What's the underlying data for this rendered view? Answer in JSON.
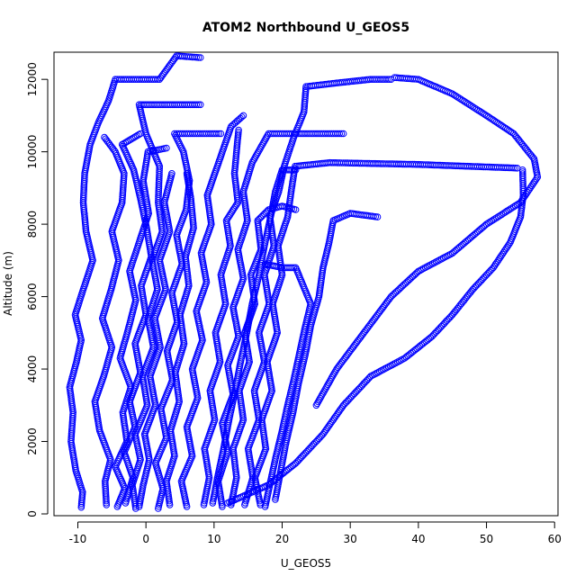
{
  "chart_data": {
    "type": "scatter",
    "title": "ATOM2 Northbound U_GEOS5",
    "xlabel": "U_GEOS5",
    "ylabel": "Altitude (m)",
    "xlim": [
      -13.5,
      60.5
    ],
    "ylim": [
      -50,
      12750
    ],
    "xticks": [
      -10,
      0,
      10,
      20,
      30,
      40,
      50,
      60
    ],
    "yticks": [
      0,
      2000,
      4000,
      6000,
      8000,
      10000,
      12000
    ],
    "grid": false,
    "marker": "open-circle",
    "point_color": "#0000ff",
    "series": [
      {
        "values": [
          [
            -9.5,
            180
          ],
          [
            -9.3,
            600
          ],
          [
            -10.3,
            1200
          ],
          [
            -11.0,
            2000
          ],
          [
            -10.7,
            2800
          ],
          [
            -11.2,
            3500
          ],
          [
            -10.2,
            4200
          ],
          [
            -9.5,
            4800
          ],
          [
            -10.4,
            5500
          ],
          [
            -9.2,
            6200
          ],
          [
            -7.8,
            7000
          ],
          [
            -8.8,
            7800
          ],
          [
            -9.2,
            8600
          ],
          [
            -9.0,
            9400
          ],
          [
            -8.2,
            10200
          ],
          [
            -7.0,
            10800
          ],
          [
            -5.5,
            11400
          ],
          [
            -4.5,
            12000
          ],
          [
            2.0,
            12000
          ],
          [
            4.5,
            12650
          ],
          [
            8.0,
            12600
          ]
        ]
      },
      {
        "values": [
          [
            -5.8,
            250
          ],
          [
            -6.0,
            900
          ],
          [
            -5.2,
            1500
          ],
          [
            -6.8,
            2300
          ],
          [
            -7.5,
            3100
          ],
          [
            -6.2,
            3800
          ],
          [
            -5.0,
            4600
          ],
          [
            -6.4,
            5400
          ],
          [
            -5.1,
            6200
          ],
          [
            -4.0,
            7000
          ],
          [
            -5.0,
            7800
          ],
          [
            -3.5,
            8600
          ],
          [
            -3.2,
            9400
          ],
          [
            -4.5,
            10000
          ],
          [
            -6.1,
            10400
          ]
        ]
      },
      {
        "values": [
          [
            -4.2,
            200
          ],
          [
            -3.1,
            700
          ],
          [
            -4.5,
            1300
          ],
          [
            -2.8,
            2000
          ],
          [
            -3.4,
            2800
          ],
          [
            -2.2,
            3500
          ],
          [
            -3.8,
            4300
          ],
          [
            -2.6,
            5100
          ],
          [
            -1.5,
            5900
          ],
          [
            -2.4,
            6700
          ],
          [
            -1.0,
            7500
          ],
          [
            0.4,
            8300
          ],
          [
            -0.4,
            9200
          ],
          [
            0.3,
            10000
          ],
          [
            3.0,
            10100
          ]
        ]
      },
      {
        "values": [
          [
            -1.5,
            150
          ],
          [
            -2.0,
            800
          ],
          [
            -0.8,
            1500
          ],
          [
            -1.6,
            2200
          ],
          [
            0.2,
            3000
          ],
          [
            -0.5,
            3800
          ],
          [
            1.1,
            4600
          ],
          [
            0.3,
            5400
          ],
          [
            1.7,
            6200
          ],
          [
            0.9,
            7000
          ],
          [
            2.4,
            7800
          ],
          [
            1.8,
            8600
          ],
          [
            2.0,
            9600
          ],
          [
            0.0,
            10500
          ],
          [
            -1.0,
            11300
          ],
          [
            8.0,
            11300
          ]
        ]
      },
      {
        "values": [
          [
            1.8,
            150
          ],
          [
            2.5,
            700
          ],
          [
            1.4,
            1400
          ],
          [
            3.0,
            2100
          ],
          [
            2.2,
            2900
          ],
          [
            3.9,
            3700
          ],
          [
            3.1,
            4500
          ],
          [
            4.6,
            5300
          ],
          [
            3.8,
            6100
          ],
          [
            5.3,
            6900
          ],
          [
            4.5,
            7700
          ],
          [
            5.9,
            8400
          ],
          [
            6.4,
            9200
          ],
          [
            5.5,
            10000
          ],
          [
            4.2,
            10500
          ],
          [
            11.0,
            10500
          ]
        ]
      },
      {
        "values": [
          [
            6.0,
            200
          ],
          [
            5.2,
            900
          ],
          [
            6.8,
            1600
          ],
          [
            6.0,
            2400
          ],
          [
            7.6,
            3200
          ],
          [
            6.8,
            4000
          ],
          [
            8.3,
            4800
          ],
          [
            7.4,
            5600
          ],
          [
            8.9,
            6400
          ],
          [
            8.1,
            7200
          ],
          [
            9.6,
            8000
          ],
          [
            9.0,
            8800
          ],
          [
            10.3,
            9500
          ],
          [
            12.5,
            10700
          ],
          [
            14.3,
            11000
          ]
        ]
      },
      {
        "values": [
          [
            11.2,
            200
          ],
          [
            10.6,
            900
          ],
          [
            12.0,
            1700
          ],
          [
            11.2,
            2500
          ],
          [
            12.8,
            3300
          ],
          [
            12.0,
            4100
          ],
          [
            13.6,
            4900
          ],
          [
            12.8,
            5700
          ],
          [
            14.3,
            6500
          ],
          [
            13.5,
            7300
          ],
          [
            14.9,
            8100
          ],
          [
            14.3,
            8900
          ],
          [
            15.6,
            9700
          ],
          [
            18.0,
            10500
          ],
          [
            29.0,
            10500
          ]
        ]
      },
      {
        "values": [
          [
            14.5,
            250
          ],
          [
            15.7,
            1000
          ],
          [
            15.0,
            1800
          ],
          [
            16.6,
            2600
          ],
          [
            15.9,
            3400
          ],
          [
            17.4,
            4200
          ],
          [
            16.6,
            5000
          ],
          [
            18.1,
            5800
          ],
          [
            17.4,
            6600
          ],
          [
            18.8,
            7400
          ],
          [
            18.2,
            8200
          ],
          [
            19.5,
            8900
          ],
          [
            20.3,
            9600
          ],
          [
            21.7,
            10400
          ],
          [
            23.2,
            11100
          ],
          [
            23.5,
            11800
          ],
          [
            28.0,
            11900
          ],
          [
            33.0,
            12000
          ],
          [
            36.0,
            12000
          ]
        ]
      },
      {
        "values": [
          [
            16.8,
            250
          ],
          [
            16.0,
            1000
          ],
          [
            17.6,
            1800
          ],
          [
            17.0,
            2600
          ],
          [
            18.5,
            3400
          ],
          [
            17.8,
            4200
          ],
          [
            19.3,
            5000
          ],
          [
            18.6,
            5800
          ],
          [
            20.0,
            6600
          ],
          [
            19.4,
            7400
          ],
          [
            20.8,
            8200
          ],
          [
            21.4,
            9000
          ],
          [
            21.9,
            9600
          ],
          [
            27.0,
            9700
          ],
          [
            40.0,
            9650
          ],
          [
            54.5,
            9550
          ]
        ]
      },
      {
        "values": [
          [
            -3.0,
            300
          ],
          [
            -1.9,
            1000
          ],
          [
            -3.2,
            1700
          ],
          [
            -1.6,
            2400
          ],
          [
            -2.4,
            3100
          ],
          [
            -0.8,
            3900
          ],
          [
            -1.6,
            4700
          ],
          [
            0.0,
            5500
          ],
          [
            -0.7,
            6300
          ],
          [
            0.8,
            7100
          ],
          [
            0.1,
            7900
          ],
          [
            -0.8,
            8700
          ],
          [
            -1.8,
            9500
          ],
          [
            -3.5,
            10200
          ],
          [
            -0.8,
            10500
          ]
        ]
      },
      {
        "values": [
          [
            3.5,
            250
          ],
          [
            3.0,
            900
          ],
          [
            4.2,
            1600
          ],
          [
            3.6,
            2300
          ],
          [
            4.9,
            3100
          ],
          [
            4.3,
            3900
          ],
          [
            5.6,
            4700
          ],
          [
            5.0,
            5500
          ],
          [
            6.3,
            6300
          ],
          [
            5.8,
            7100
          ],
          [
            7.0,
            7900
          ],
          [
            6.6,
            8700
          ],
          [
            6.0,
            9400
          ]
        ]
      },
      {
        "values": [
          [
            8.5,
            250
          ],
          [
            9.3,
            1000
          ],
          [
            8.6,
            1800
          ],
          [
            10.1,
            2600
          ],
          [
            9.4,
            3400
          ],
          [
            10.9,
            4200
          ],
          [
            10.2,
            5000
          ],
          [
            11.7,
            5800
          ],
          [
            11.0,
            6600
          ],
          [
            12.4,
            7400
          ],
          [
            11.8,
            8100
          ],
          [
            13.5,
            8600
          ],
          [
            13.0,
            9400
          ],
          [
            13.6,
            10600
          ]
        ]
      },
      {
        "values": [
          [
            12.5,
            250
          ],
          [
            13.3,
            1000
          ],
          [
            12.8,
            1800
          ],
          [
            14.3,
            2600
          ],
          [
            13.7,
            3400
          ],
          [
            15.2,
            4200
          ],
          [
            14.5,
            5000
          ],
          [
            16.0,
            5800
          ],
          [
            15.4,
            6600
          ],
          [
            16.9,
            7300
          ],
          [
            16.4,
            8100
          ],
          [
            18.0,
            8400
          ],
          [
            20.0,
            8500
          ],
          [
            22.0,
            8400
          ]
        ]
      },
      {
        "values": [
          [
            19.0,
            400
          ],
          [
            19.8,
            1200
          ],
          [
            20.6,
            2000
          ],
          [
            21.6,
            2800
          ],
          [
            22.4,
            3600
          ],
          [
            23.4,
            4400
          ],
          [
            24.2,
            5200
          ],
          [
            25.4,
            6000
          ],
          [
            26.0,
            6800
          ],
          [
            26.9,
            7500
          ],
          [
            27.5,
            8100
          ],
          [
            30.0,
            8300
          ],
          [
            34.0,
            8200
          ]
        ]
      },
      {
        "values": [
          [
            12.0,
            300
          ],
          [
            18.0,
            800
          ],
          [
            22.0,
            1400
          ],
          [
            26.0,
            2200
          ],
          [
            29.0,
            3000
          ],
          [
            33.0,
            3800
          ],
          [
            38.0,
            4300
          ],
          [
            42.0,
            4900
          ],
          [
            45.0,
            5500
          ],
          [
            48.0,
            6200
          ],
          [
            51.0,
            6800
          ],
          [
            53.5,
            7500
          ],
          [
            55.0,
            8200
          ],
          [
            55.4,
            8800
          ],
          [
            55.3,
            9500
          ]
        ]
      },
      {
        "values": [
          [
            25.0,
            3000
          ],
          [
            28.0,
            4000
          ],
          [
            32.0,
            5000
          ],
          [
            36.0,
            6000
          ],
          [
            40.0,
            6700
          ],
          [
            45.0,
            7200
          ],
          [
            50.0,
            8000
          ],
          [
            55.0,
            8600
          ],
          [
            57.5,
            9300
          ],
          [
            57.0,
            9800
          ],
          [
            54.0,
            10500
          ],
          [
            50.0,
            11000
          ],
          [
            45.0,
            11600
          ],
          [
            40.0,
            12000
          ],
          [
            36.5,
            12050
          ]
        ]
      },
      {
        "values": [
          [
            -1.0,
            200
          ],
          [
            -0.4,
            800
          ],
          [
            0.5,
            1500
          ],
          [
            -0.2,
            2200
          ],
          [
            1.4,
            3000
          ],
          [
            0.6,
            3800
          ],
          [
            2.1,
            4600
          ],
          [
            1.3,
            5400
          ],
          [
            2.9,
            6200
          ],
          [
            2.0,
            7000
          ],
          [
            3.5,
            7800
          ],
          [
            2.7,
            8600
          ],
          [
            3.8,
            9400
          ]
        ]
      },
      {
        "values": [
          [
            9.8,
            300
          ],
          [
            10.5,
            1000
          ],
          [
            11.4,
            1800
          ],
          [
            12.2,
            2600
          ],
          [
            13.1,
            3400
          ],
          [
            13.9,
            4200
          ],
          [
            14.8,
            5000
          ],
          [
            15.6,
            5800
          ],
          [
            16.6,
            6600
          ],
          [
            17.4,
            7400
          ],
          [
            18.3,
            8200
          ],
          [
            19.0,
            8900
          ],
          [
            20.0,
            9500
          ],
          [
            22.0,
            9500
          ]
        ]
      },
      {
        "values": [
          [
            17.5,
            200
          ],
          [
            18.3,
            900
          ],
          [
            19.1,
            1600
          ],
          [
            20.0,
            2300
          ],
          [
            20.8,
            3000
          ],
          [
            21.7,
            3700
          ],
          [
            22.5,
            4400
          ],
          [
            23.3,
            5100
          ],
          [
            24.2,
            5800
          ],
          [
            22.0,
            6800
          ],
          [
            20.0,
            6800
          ],
          [
            17.5,
            6900
          ]
        ]
      }
    ]
  }
}
